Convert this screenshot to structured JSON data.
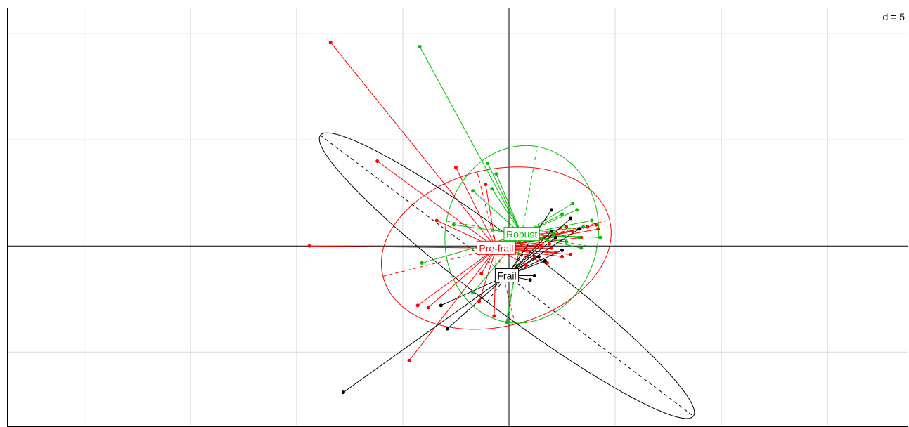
{
  "scale_label": "d = 5",
  "colors": {
    "Robust": "#00c000",
    "Pre-frail": "#ff0000",
    "Frail": "#000000",
    "grid": "#d9d9d9",
    "axis": "#000000"
  },
  "chart_data": {
    "type": "scatter",
    "subtype": "s.class ordination plot (centroids with star links and inertia ellipses)",
    "title": "",
    "xlabel": "",
    "ylabel": "",
    "xlim": [
      -23.6,
      18.8
    ],
    "ylim": [
      -8.5,
      11.2
    ],
    "grid": true,
    "grid_step": 5,
    "legend": "none",
    "groups": [
      {
        "name": "Pre-frail",
        "color": "#ff0000",
        "centroid": [
          -0.6,
          -0.1
        ],
        "ellipse": {
          "rx": 5.5,
          "ry": 3.7,
          "angle_deg": 14
        },
        "points": [
          [
            -8.4,
            9.6
          ],
          [
            -6.2,
            4.0
          ],
          [
            -2.5,
            3.7
          ],
          [
            -1.1,
            2.9
          ],
          [
            -3.4,
            1.2
          ],
          [
            -9.4,
            0.0
          ],
          [
            -4.3,
            -2.8
          ],
          [
            -3.8,
            -2.9
          ],
          [
            -1.4,
            -2.6
          ],
          [
            -0.7,
            -3.3
          ],
          [
            -4.7,
            -5.4
          ],
          [
            -1.3,
            -1.3
          ],
          [
            1.5,
            0.0
          ],
          [
            2.2,
            -0.3
          ],
          [
            1.9,
            0.1
          ],
          [
            2.5,
            -0.5
          ],
          [
            3.4,
            0.4
          ],
          [
            3.7,
            0.9
          ],
          [
            4.2,
            0.8
          ],
          [
            3.0,
            0.7
          ],
          [
            2.7,
            0.9
          ],
          [
            1.8,
            -0.8
          ],
          [
            1.2,
            -0.5
          ],
          [
            2.0,
            -0.1
          ],
          [
            4.1,
            1.0
          ],
          [
            0.8,
            -0.9
          ],
          [
            2.9,
            -0.4
          ],
          [
            1.4,
            0.3
          ]
        ]
      },
      {
        "name": "Robust",
        "color": "#00c000",
        "centroid": [
          0.6,
          0.55
        ],
        "ellipse": {
          "rx": 3.6,
          "ry": 4.2,
          "angle_deg": -10
        },
        "points": [
          [
            -4.2,
            9.4
          ],
          [
            -1.0,
            3.9
          ],
          [
            -0.6,
            3.4
          ],
          [
            -1.7,
            2.6
          ],
          [
            -0.8,
            2.7
          ],
          [
            -2.6,
            1.0
          ],
          [
            -4.1,
            -0.8
          ],
          [
            -1.7,
            -2.2
          ],
          [
            -0.1,
            -3.6
          ],
          [
            3.0,
            2.0
          ],
          [
            2.5,
            1.5
          ],
          [
            3.2,
            1.7
          ],
          [
            3.9,
            1.2
          ],
          [
            3.5,
            0.9
          ],
          [
            3.3,
            0.4
          ],
          [
            2.7,
            0.2
          ],
          [
            2.1,
            0.6
          ],
          [
            1.8,
            0.3
          ],
          [
            3.4,
            -0.1
          ],
          [
            4.3,
            0.4
          ],
          [
            0.9,
            0.7
          ]
        ]
      },
      {
        "name": "Frail",
        "color": "#000000",
        "centroid": [
          -0.1,
          -1.4
        ],
        "ellipse": {
          "rx": 11.0,
          "ry": 1.55,
          "angle_deg": -37
        },
        "points": [
          [
            -7.8,
            -6.9
          ],
          [
            -2.9,
            -3.9
          ],
          [
            -3.2,
            -2.8
          ],
          [
            1.0,
            -1.6
          ],
          [
            2.0,
            1.7
          ],
          [
            2.9,
            1.3
          ],
          [
            3.3,
            0.8
          ],
          [
            2.0,
            0.7
          ],
          [
            2.2,
            0.4
          ],
          [
            1.7,
            -0.7
          ],
          [
            1.4,
            -0.5
          ],
          [
            2.5,
            -0.2
          ],
          [
            1.2,
            -1.4
          ]
        ]
      }
    ]
  }
}
